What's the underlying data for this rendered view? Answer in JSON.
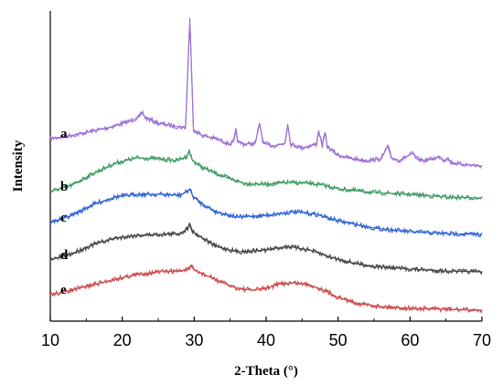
{
  "chart_data": {
    "type": "line",
    "title": "",
    "xlabel": "2-Theta (°)",
    "ylabel": "Intensity",
    "xlim": [
      10,
      70
    ],
    "xticks": [
      10,
      20,
      30,
      40,
      50,
      60,
      70
    ],
    "yticks_shown": false,
    "grid": false,
    "legend": "labels at left of each curve",
    "series": [
      {
        "name": "a",
        "color": "#9b6fd6",
        "points": [
          [
            10,
            152
          ],
          [
            14,
            147
          ],
          [
            18,
            140
          ],
          [
            21,
            133
          ],
          [
            22.4,
            128
          ],
          [
            22.8,
            123
          ],
          [
            23.2,
            129
          ],
          [
            25,
            135
          ],
          [
            27,
            138
          ],
          [
            28.8,
            140
          ],
          [
            29.2,
            60
          ],
          [
            29.4,
            20
          ],
          [
            29.6,
            70
          ],
          [
            29.9,
            142
          ],
          [
            31,
            148
          ],
          [
            33,
            152
          ],
          [
            35,
            158
          ],
          [
            35.5,
            155
          ],
          [
            35.8,
            143
          ],
          [
            36.1,
            156
          ],
          [
            37,
            158
          ],
          [
            38.5,
            157
          ],
          [
            39.1,
            135
          ],
          [
            39.6,
            157
          ],
          [
            41,
            160
          ],
          [
            42.6,
            157
          ],
          [
            43,
            136
          ],
          [
            43.4,
            158
          ],
          [
            45,
            162
          ],
          [
            47,
            158
          ],
          [
            47.3,
            143
          ],
          [
            47.8,
            160
          ],
          [
            48.2,
            145
          ],
          [
            48.5,
            161
          ],
          [
            50,
            170
          ],
          [
            52,
            174
          ],
          [
            54,
            176
          ],
          [
            56,
            174
          ],
          [
            56.9,
            160
          ],
          [
            57.4,
            173
          ],
          [
            58.5,
            176
          ],
          [
            60.4,
            168
          ],
          [
            60.9,
            174
          ],
          [
            62,
            176
          ],
          [
            64.2,
            172
          ],
          [
            64.7,
            176
          ],
          [
            65.2,
            173
          ],
          [
            65.7,
            178
          ],
          [
            67,
            180
          ],
          [
            70,
            182
          ]
        ]
      },
      {
        "name": "b",
        "color": "#3e9a63",
        "points": [
          [
            10,
            210
          ],
          [
            13,
            203
          ],
          [
            16,
            190
          ],
          [
            19,
            179
          ],
          [
            22,
            173
          ],
          [
            25,
            174
          ],
          [
            27.5,
            176
          ],
          [
            28.9,
            172
          ],
          [
            29.3,
            165
          ],
          [
            29.7,
            175
          ],
          [
            31,
            183
          ],
          [
            33,
            190
          ],
          [
            35,
            196
          ],
          [
            37,
            201
          ],
          [
            40,
            202
          ],
          [
            43,
            200
          ],
          [
            46,
            201
          ],
          [
            48,
            203
          ],
          [
            50,
            207
          ],
          [
            55,
            211
          ],
          [
            60,
            213
          ],
          [
            65,
            216
          ],
          [
            70,
            217
          ]
        ]
      },
      {
        "name": "c",
        "color": "#2e62d6",
        "points": [
          [
            10,
            244
          ],
          [
            13,
            236
          ],
          [
            16,
            224
          ],
          [
            19,
            216
          ],
          [
            22,
            213
          ],
          [
            25,
            213
          ],
          [
            28,
            214
          ],
          [
            29,
            210
          ],
          [
            29.4,
            207
          ],
          [
            29.8,
            215
          ],
          [
            31,
            223
          ],
          [
            33,
            232
          ],
          [
            36,
            238
          ],
          [
            40,
            236
          ],
          [
            44,
            232
          ],
          [
            47,
            235
          ],
          [
            50,
            242
          ],
          [
            55,
            250
          ],
          [
            60,
            254
          ],
          [
            65,
            256
          ],
          [
            70,
            257
          ]
        ]
      },
      {
        "name": "d",
        "color": "#454545",
        "points": [
          [
            10,
            285
          ],
          [
            13,
            278
          ],
          [
            16,
            268
          ],
          [
            19,
            261
          ],
          [
            22,
            258
          ],
          [
            25,
            257
          ],
          [
            28,
            256
          ],
          [
            29,
            251
          ],
          [
            29.4,
            245
          ],
          [
            29.8,
            254
          ],
          [
            31,
            260
          ],
          [
            33,
            270
          ],
          [
            36,
            276
          ],
          [
            40,
            274
          ],
          [
            43,
            270
          ],
          [
            46,
            274
          ],
          [
            49,
            282
          ],
          [
            52,
            288
          ],
          [
            55,
            292
          ],
          [
            60,
            295
          ],
          [
            65,
            297
          ],
          [
            70,
            298
          ]
        ]
      },
      {
        "name": "e",
        "color": "#cc4a4a",
        "points": [
          [
            10,
            323
          ],
          [
            13,
            318
          ],
          [
            16,
            312
          ],
          [
            19,
            306
          ],
          [
            22,
            301
          ],
          [
            25,
            298
          ],
          [
            28,
            297
          ],
          [
            29.2,
            295
          ],
          [
            29.6,
            292
          ],
          [
            30,
            296
          ],
          [
            32,
            303
          ],
          [
            34,
            310
          ],
          [
            36,
            316
          ],
          [
            38,
            318
          ],
          [
            40,
            316
          ],
          [
            42,
            311
          ],
          [
            44,
            310
          ],
          [
            46,
            312
          ],
          [
            48,
            318
          ],
          [
            50,
            326
          ],
          [
            53,
            333
          ],
          [
            56,
            336
          ],
          [
            60,
            338
          ],
          [
            65,
            339
          ],
          [
            70,
            340
          ]
        ]
      }
    ]
  }
}
